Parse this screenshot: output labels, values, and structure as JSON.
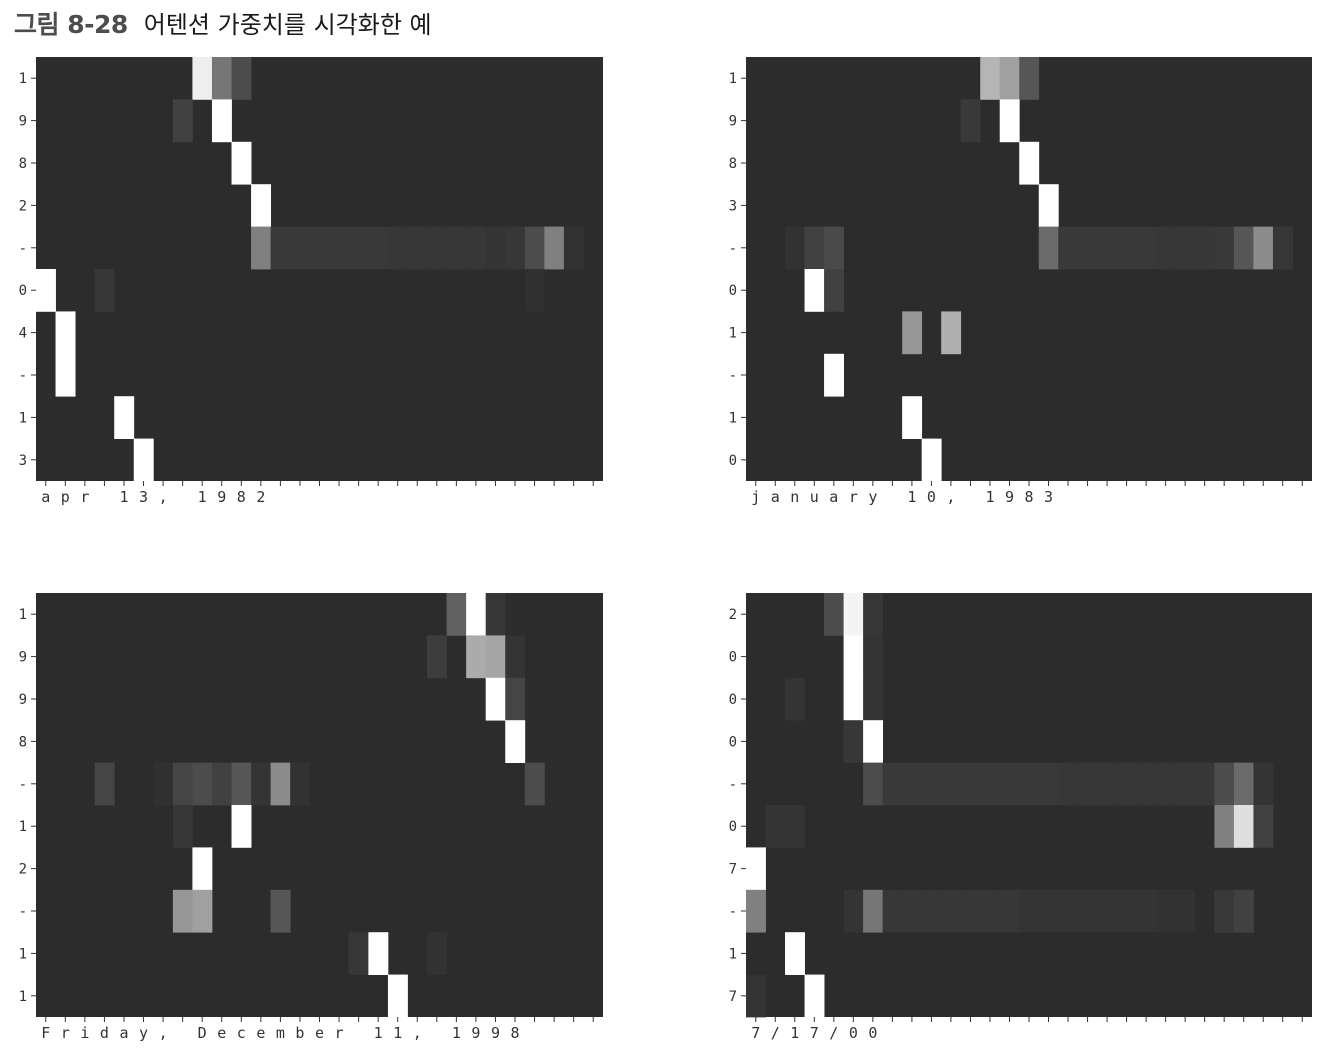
{
  "figure": {
    "number": "그림 8-28",
    "caption": "어텐션 가중치를 시각화한 예"
  },
  "colors": {
    "cell_low": "#2c2c2c",
    "cell_high": "#ffffff",
    "axis": "#333333"
  },
  "chart_data": [
    {
      "type": "heatmap",
      "title": "",
      "y_labels": [
        "1",
        "9",
        "8",
        "2",
        "-",
        "0",
        "4",
        "-",
        "1",
        "3"
      ],
      "x_labels": [
        "a",
        "p",
        "r",
        " ",
        "1",
        "3",
        ",",
        " ",
        "1",
        "9",
        "8",
        "2"
      ],
      "n_cols": 29,
      "cells": [
        [
          0,
          8,
          0.92
        ],
        [
          0,
          9,
          0.35
        ],
        [
          0,
          10,
          0.15
        ],
        [
          1,
          7,
          0.1
        ],
        [
          1,
          9,
          1.0
        ],
        [
          2,
          10,
          1.0
        ],
        [
          3,
          11,
          1.0
        ],
        [
          4,
          11,
          0.4
        ],
        [
          4,
          12,
          0.06
        ],
        [
          4,
          13,
          0.06
        ],
        [
          4,
          14,
          0.06
        ],
        [
          4,
          15,
          0.06
        ],
        [
          4,
          16,
          0.06
        ],
        [
          4,
          17,
          0.06
        ],
        [
          4,
          18,
          0.05
        ],
        [
          4,
          19,
          0.05
        ],
        [
          4,
          20,
          0.05
        ],
        [
          4,
          21,
          0.05
        ],
        [
          4,
          22,
          0.05
        ],
        [
          4,
          23,
          0.04
        ],
        [
          4,
          24,
          0.05
        ],
        [
          4,
          25,
          0.15
        ],
        [
          4,
          26,
          0.4
        ],
        [
          4,
          27,
          0.03
        ],
        [
          5,
          0,
          1.0
        ],
        [
          5,
          3,
          0.05
        ],
        [
          5,
          25,
          0.02
        ],
        [
          6,
          1,
          1.0
        ],
        [
          7,
          1,
          1.0
        ],
        [
          8,
          4,
          1.0
        ],
        [
          9,
          5,
          1.0
        ]
      ]
    },
    {
      "type": "heatmap",
      "title": "",
      "y_labels": [
        "1",
        "9",
        "8",
        "3",
        "-",
        "0",
        "1",
        "-",
        "1",
        "0"
      ],
      "x_labels": [
        "j",
        "a",
        "n",
        "u",
        "a",
        "r",
        "y",
        " ",
        "1",
        "0",
        ",",
        " ",
        "1",
        "9",
        "8",
        "3"
      ],
      "n_cols": 29,
      "cells": [
        [
          0,
          12,
          0.65
        ],
        [
          0,
          13,
          0.55
        ],
        [
          0,
          14,
          0.2
        ],
        [
          1,
          11,
          0.06
        ],
        [
          1,
          13,
          1.0
        ],
        [
          2,
          14,
          1.0
        ],
        [
          3,
          15,
          1.0
        ],
        [
          4,
          2,
          0.03
        ],
        [
          4,
          3,
          0.1
        ],
        [
          4,
          4,
          0.14
        ],
        [
          4,
          15,
          0.3
        ],
        [
          4,
          16,
          0.06
        ],
        [
          4,
          17,
          0.06
        ],
        [
          4,
          18,
          0.06
        ],
        [
          4,
          19,
          0.06
        ],
        [
          4,
          20,
          0.06
        ],
        [
          4,
          21,
          0.05
        ],
        [
          4,
          22,
          0.05
        ],
        [
          4,
          23,
          0.05
        ],
        [
          4,
          24,
          0.06
        ],
        [
          4,
          25,
          0.2
        ],
        [
          4,
          26,
          0.45
        ],
        [
          4,
          27,
          0.05
        ],
        [
          5,
          3,
          1.0
        ],
        [
          5,
          4,
          0.1
        ],
        [
          6,
          8,
          0.5
        ],
        [
          6,
          10,
          0.62
        ],
        [
          7,
          4,
          1.0
        ],
        [
          8,
          8,
          1.0
        ],
        [
          9,
          9,
          1.0
        ]
      ]
    },
    {
      "type": "heatmap",
      "title": "",
      "y_labels": [
        "1",
        "9",
        "9",
        "8",
        "-",
        "1",
        "2",
        "-",
        "1",
        "1"
      ],
      "x_labels": [
        "F",
        "r",
        "i",
        "d",
        "a",
        "y",
        ",",
        " ",
        "D",
        "e",
        "c",
        "e",
        "m",
        "b",
        "e",
        "r",
        " ",
        "1",
        "1",
        ",",
        " ",
        "1",
        "9",
        "9",
        "8"
      ],
      "n_cols": 29,
      "cells": [
        [
          0,
          21,
          0.25
        ],
        [
          0,
          22,
          1.0
        ],
        [
          0,
          23,
          0.05
        ],
        [
          1,
          20,
          0.08
        ],
        [
          1,
          22,
          0.6
        ],
        [
          1,
          23,
          0.58
        ],
        [
          1,
          24,
          0.04
        ],
        [
          2,
          23,
          1.0
        ],
        [
          2,
          24,
          0.12
        ],
        [
          3,
          24,
          1.0
        ],
        [
          4,
          3,
          0.12
        ],
        [
          4,
          6,
          0.02
        ],
        [
          4,
          7,
          0.12
        ],
        [
          4,
          8,
          0.15
        ],
        [
          4,
          9,
          0.1
        ],
        [
          4,
          10,
          0.2
        ],
        [
          4,
          11,
          0.04
        ],
        [
          4,
          12,
          0.45
        ],
        [
          4,
          13,
          0.03
        ],
        [
          4,
          25,
          0.15
        ],
        [
          5,
          7,
          0.05
        ],
        [
          5,
          10,
          1.0
        ],
        [
          6,
          8,
          1.0
        ],
        [
          7,
          7,
          0.5
        ],
        [
          7,
          8,
          0.55
        ],
        [
          7,
          12,
          0.2
        ],
        [
          8,
          16,
          0.05
        ],
        [
          8,
          17,
          1.0
        ],
        [
          8,
          20,
          0.03
        ],
        [
          9,
          18,
          1.0
        ]
      ]
    },
    {
      "type": "heatmap",
      "title": "",
      "y_labels": [
        "2",
        "0",
        "0",
        "0",
        "-",
        "0",
        "7",
        "-",
        "1",
        "7"
      ],
      "x_labels": [
        "7",
        "/",
        "1",
        "7",
        "/",
        "0",
        "0"
      ],
      "n_cols": 29,
      "cells": [
        [
          0,
          4,
          0.15
        ],
        [
          0,
          5,
          0.95
        ],
        [
          0,
          6,
          0.05
        ],
        [
          1,
          5,
          1.0
        ],
        [
          1,
          6,
          0.04
        ],
        [
          2,
          2,
          0.04
        ],
        [
          2,
          5,
          1.0
        ],
        [
          2,
          6,
          0.04
        ],
        [
          3,
          5,
          0.05
        ],
        [
          3,
          6,
          1.0
        ],
        [
          4,
          6,
          0.15
        ],
        [
          4,
          7,
          0.06
        ],
        [
          4,
          8,
          0.06
        ],
        [
          4,
          9,
          0.06
        ],
        [
          4,
          10,
          0.06
        ],
        [
          4,
          11,
          0.06
        ],
        [
          4,
          12,
          0.06
        ],
        [
          4,
          13,
          0.06
        ],
        [
          4,
          14,
          0.06
        ],
        [
          4,
          15,
          0.06
        ],
        [
          4,
          16,
          0.05
        ],
        [
          4,
          17,
          0.05
        ],
        [
          4,
          18,
          0.05
        ],
        [
          4,
          19,
          0.05
        ],
        [
          4,
          20,
          0.05
        ],
        [
          4,
          21,
          0.05
        ],
        [
          4,
          22,
          0.05
        ],
        [
          4,
          23,
          0.05
        ],
        [
          4,
          24,
          0.15
        ],
        [
          4,
          25,
          0.3
        ],
        [
          4,
          26,
          0.04
        ],
        [
          5,
          1,
          0.04
        ],
        [
          5,
          2,
          0.04
        ],
        [
          5,
          24,
          0.4
        ],
        [
          5,
          25,
          0.85
        ],
        [
          5,
          26,
          0.1
        ],
        [
          6,
          0,
          1.0
        ],
        [
          7,
          0,
          0.4
        ],
        [
          7,
          5,
          0.04
        ],
        [
          7,
          6,
          0.35
        ],
        [
          7,
          7,
          0.05
        ],
        [
          7,
          8,
          0.05
        ],
        [
          7,
          9,
          0.05
        ],
        [
          7,
          10,
          0.05
        ],
        [
          7,
          11,
          0.05
        ],
        [
          7,
          12,
          0.05
        ],
        [
          7,
          13,
          0.05
        ],
        [
          7,
          14,
          0.04
        ],
        [
          7,
          15,
          0.04
        ],
        [
          7,
          16,
          0.04
        ],
        [
          7,
          17,
          0.04
        ],
        [
          7,
          18,
          0.04
        ],
        [
          7,
          19,
          0.04
        ],
        [
          7,
          20,
          0.04
        ],
        [
          7,
          21,
          0.03
        ],
        [
          7,
          22,
          0.03
        ],
        [
          7,
          24,
          0.06
        ],
        [
          7,
          25,
          0.1
        ],
        [
          8,
          2,
          1.0
        ],
        [
          9,
          0,
          0.04
        ],
        [
          9,
          3,
          1.0
        ]
      ]
    }
  ]
}
